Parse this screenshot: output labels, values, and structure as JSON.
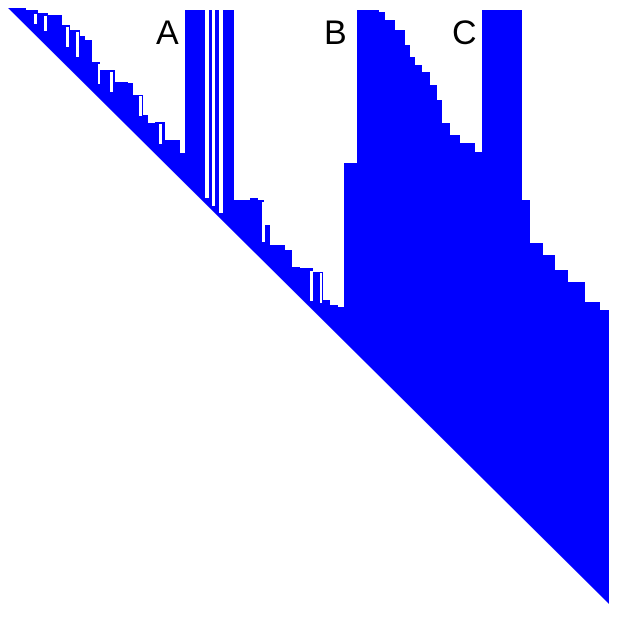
{
  "figure": {
    "fill_color": "#0000ff",
    "background_color": "#ffffff",
    "labels": [
      {
        "id": "a",
        "text": "A"
      },
      {
        "id": "b",
        "text": "B"
      },
      {
        "id": "c",
        "text": "C"
      }
    ]
  }
}
